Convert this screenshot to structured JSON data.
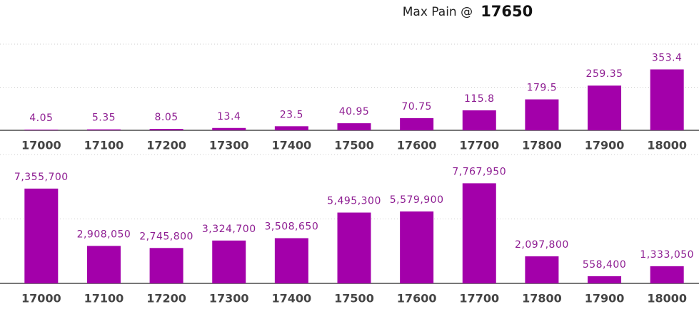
{
  "header": {
    "label": "Max Pain @",
    "value": 17650
  },
  "chart_data": [
    {
      "type": "bar",
      "color": "#a300aa",
      "categories": [
        "17000",
        "17100",
        "17200",
        "17300",
        "17400",
        "17500",
        "17600",
        "17700",
        "17800",
        "17900",
        "18000"
      ],
      "values": [
        4.05,
        5.35,
        8.05,
        13.4,
        23.5,
        40.95,
        70.75,
        115.8,
        179.5,
        259.35,
        353.4
      ],
      "ylim": [
        0,
        500
      ],
      "yticks": [
        0,
        250,
        500
      ],
      "grid": true
    },
    {
      "type": "bar",
      "color": "#a300aa",
      "categories": [
        "17000",
        "17100",
        "17200",
        "17300",
        "17400",
        "17500",
        "17600",
        "17700",
        "17800",
        "17900",
        "18000"
      ],
      "values": [
        7355700,
        2908050,
        2745800,
        3324700,
        3508650,
        5495300,
        5579900,
        7767950,
        2097800,
        558400,
        1333050
      ],
      "value_labels": [
        "7,355,700",
        "2,908,050",
        "2,745,800",
        "3,324,700",
        "3,508,650",
        "5,495,300",
        "5,579,900",
        "7,767,950",
        "2,097,800",
        "558,400",
        "1,333,050"
      ],
      "ylim": [
        0,
        10000000
      ],
      "yticks": [
        0,
        5000000,
        10000000
      ],
      "grid": true
    }
  ]
}
